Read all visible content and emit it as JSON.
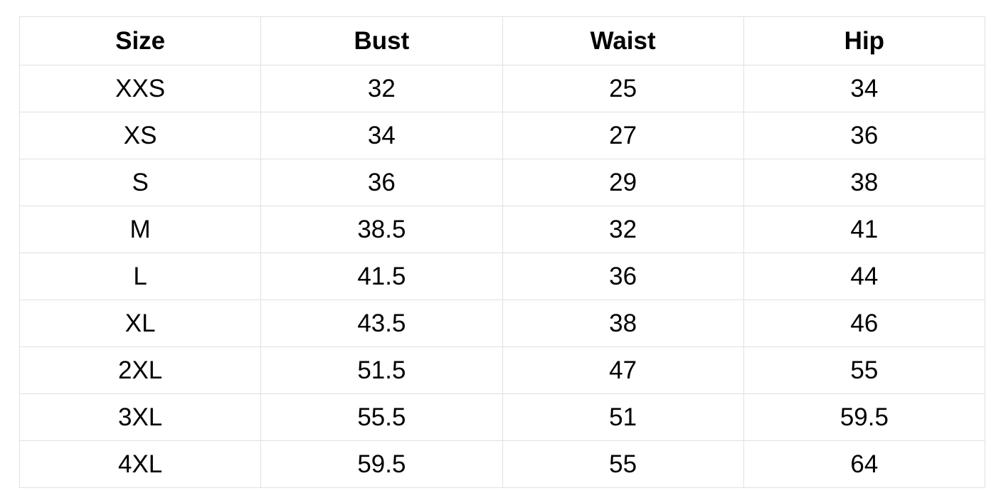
{
  "table": {
    "headers": [
      "Size",
      "Bust",
      "Waist",
      "Hip"
    ],
    "rows": [
      [
        "XXS",
        "32",
        "25",
        "34"
      ],
      [
        "XS",
        "34",
        "27",
        "36"
      ],
      [
        "S",
        "36",
        "29",
        "38"
      ],
      [
        "M",
        "38.5",
        "32",
        "41"
      ],
      [
        "L",
        "41.5",
        "36",
        "44"
      ],
      [
        "XL",
        "43.5",
        "38",
        "46"
      ],
      [
        "2XL",
        "51.5",
        "47",
        "55"
      ],
      [
        "3XL",
        "55.5",
        "51",
        "59.5"
      ],
      [
        "4XL",
        "59.5",
        "55",
        "64"
      ]
    ]
  }
}
